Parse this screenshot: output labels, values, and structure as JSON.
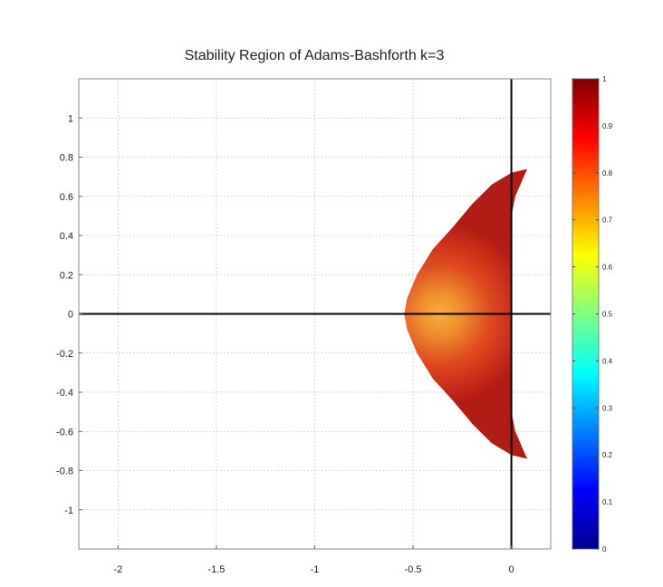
{
  "chart_data": {
    "type": "heatmap",
    "title": "Stability Region of Adams-Bashforth k=3",
    "xlim": [
      -2.2,
      0.2
    ],
    "ylim": [
      -1.2,
      1.2
    ],
    "grid": true,
    "xticks": [
      -2,
      -1.5,
      -1,
      -0.5,
      0
    ],
    "xtick_labels": [
      "-2",
      "-1.5",
      "-1",
      "-0.5",
      "0"
    ],
    "yticks": [
      1,
      0.8,
      0.6,
      0.4,
      0.2,
      0,
      -0.2,
      -0.4,
      -0.6,
      -0.8,
      -1
    ],
    "ytick_labels": [
      "1",
      "0.8",
      "0.6",
      "0.4",
      "0.2",
      "0",
      "-0.2",
      "-0.4",
      "-0.6",
      "-0.8",
      "-1"
    ],
    "axis_lines": {
      "x": 0,
      "y": 0
    },
    "region": {
      "description_key": "stable",
      "boundary_points": [
        [
          0.08,
          0.74
        ],
        [
          0.0,
          0.72
        ],
        [
          -0.1,
          0.66
        ],
        [
          -0.2,
          0.56
        ],
        [
          -0.3,
          0.44
        ],
        [
          -0.4,
          0.33
        ],
        [
          -0.48,
          0.2
        ],
        [
          -0.53,
          0.08
        ],
        [
          -0.545,
          0.0
        ],
        [
          -0.53,
          -0.08
        ],
        [
          -0.48,
          -0.2
        ],
        [
          -0.4,
          -0.33
        ],
        [
          -0.3,
          -0.44
        ],
        [
          -0.2,
          -0.56
        ],
        [
          -0.1,
          -0.66
        ],
        [
          0.0,
          -0.72
        ],
        [
          0.08,
          -0.74
        ],
        [
          0.02,
          -0.6
        ],
        [
          0.0,
          -0.5
        ],
        [
          0.0,
          0.5
        ],
        [
          0.02,
          0.6
        ]
      ],
      "value_range": [
        0.65,
        1.0
      ],
      "min_value_location": [
        -0.36,
        0.0
      ]
    },
    "colorbar": {
      "range": [
        0,
        1
      ],
      "ticks": [
        1,
        0.9,
        0.8,
        0.7,
        0.6,
        0.5,
        0.4,
        0.3,
        0.2,
        0.1,
        0
      ],
      "tick_labels": [
        "1",
        "0.9",
        "0.8",
        "0.7",
        "0.6",
        "0.5",
        "0.4",
        "0.3",
        "0.2",
        "0.1",
        "0"
      ],
      "colormap": "jet"
    }
  }
}
